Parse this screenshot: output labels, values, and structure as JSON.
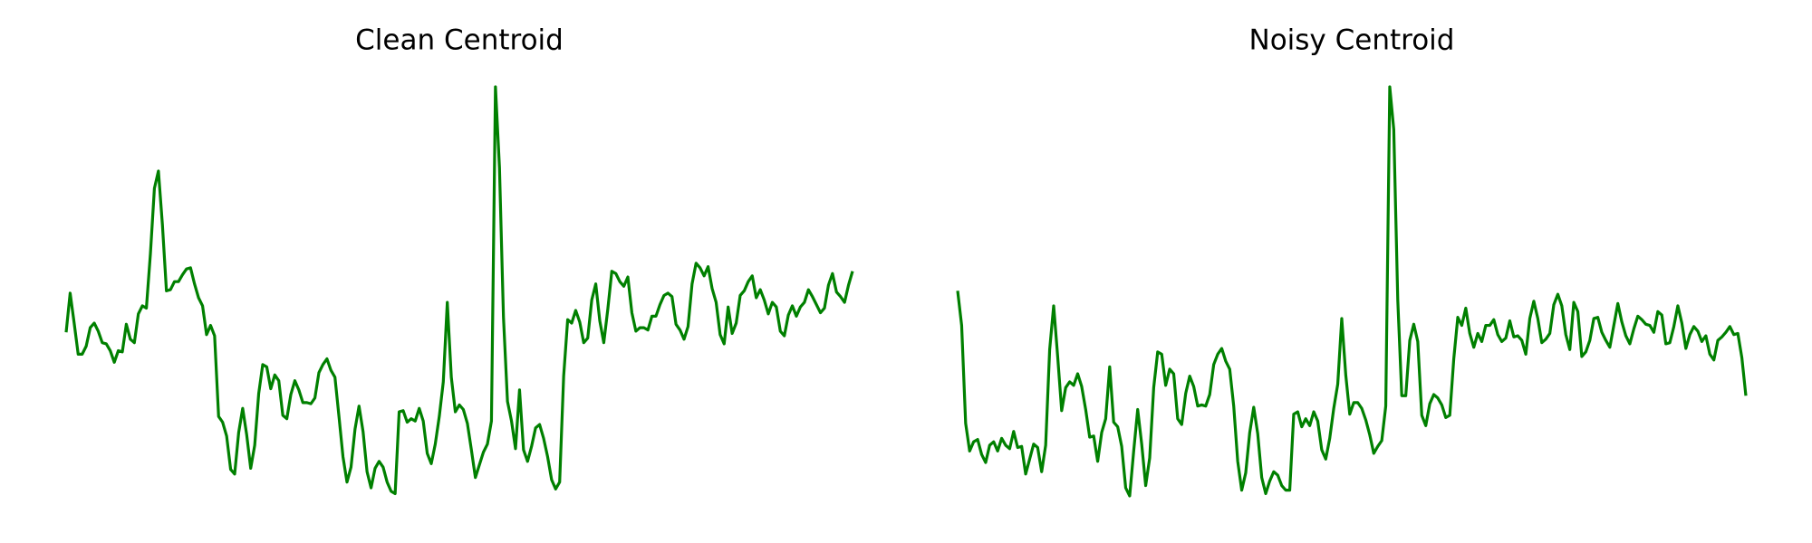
{
  "chart_data": [
    {
      "type": "line",
      "title": "Clean Centroid",
      "color": "#008000",
      "ylim": [
        0,
        355
      ],
      "values": [
        142,
        176,
        150,
        123,
        123,
        130,
        146,
        150,
        143,
        133,
        132,
        126,
        116,
        126,
        125,
        149,
        136,
        133,
        158,
        165,
        163,
        210,
        267,
        282,
        235,
        178,
        179,
        186,
        186,
        192,
        197,
        198,
        184,
        172,
        165,
        140,
        148,
        139,
        69,
        64,
        52,
        23,
        19,
        55,
        76,
        53,
        24,
        44,
        89,
        114,
        112,
        93,
        105,
        100,
        70,
        67,
        88,
        100,
        92,
        81,
        81,
        80,
        85,
        107,
        114,
        119,
        109,
        103,
        69,
        34,
        12,
        25,
        58,
        78,
        56,
        21,
        7,
        24,
        30,
        25,
        12,
        4,
        2,
        73,
        74,
        64,
        67,
        65,
        76,
        65,
        37,
        28,
        45,
        69,
        99,
        168,
        103,
        73,
        79,
        75,
        63,
        40,
        16,
        27,
        38,
        45,
        65,
        355,
        285,
        155,
        82,
        65,
        41,
        92,
        40,
        30,
        43,
        59,
        62,
        50,
        34,
        14,
        6,
        12,
        104,
        153,
        150,
        161,
        151,
        133,
        137,
        170,
        184,
        152,
        133,
        162,
        195,
        193,
        186,
        182,
        190,
        159,
        143,
        146,
        146,
        144,
        156,
        156,
        166,
        174,
        176,
        173,
        149,
        144,
        136,
        147,
        184,
        202,
        198,
        191,
        199,
        180,
        168,
        140,
        132,
        164,
        141,
        150,
        174,
        178,
        186,
        191,
        172,
        179,
        170,
        158,
        168,
        164,
        143,
        139,
        157,
        165,
        156,
        164,
        168,
        179,
        173,
        166,
        159,
        163,
        183,
        193,
        177,
        173,
        168,
        183,
        195
      ]
    },
    {
      "type": "line",
      "title": "Noisy Centroid",
      "color": "#008000",
      "ylim": [
        0,
        355
      ],
      "values": [
        178,
        148,
        63,
        39,
        47,
        49,
        36,
        29,
        44,
        47,
        39,
        50,
        44,
        41,
        56,
        42,
        43,
        19,
        32,
        45,
        42,
        21,
        44,
        127,
        165,
        121,
        74,
        94,
        99,
        96,
        106,
        95,
        75,
        51,
        52,
        30,
        55,
        67,
        112,
        64,
        60,
        43,
        7,
        0,
        39,
        75,
        45,
        9,
        33,
        94,
        125,
        123,
        96,
        110,
        106,
        67,
        62,
        89,
        104,
        95,
        78,
        79,
        78,
        88,
        114,
        123,
        128,
        117,
        110,
        78,
        30,
        5,
        20,
        55,
        77,
        54,
        16,
        2,
        13,
        21,
        18,
        9,
        5,
        5,
        71,
        73,
        60,
        67,
        61,
        73,
        65,
        40,
        32,
        50,
        76,
        97,
        154,
        105,
        71,
        81,
        81,
        76,
        66,
        53,
        37,
        43,
        48,
        78,
        355,
        318,
        170,
        87,
        87,
        135,
        149,
        134,
        70,
        61,
        80,
        88,
        85,
        79,
        68,
        70,
        119,
        155,
        148,
        163,
        141,
        129,
        141,
        134,
        148,
        148,
        153,
        140,
        134,
        137,
        152,
        138,
        139,
        135,
        123,
        154,
        169,
        154,
        133,
        136,
        141,
        166,
        175,
        165,
        140,
        127,
        168,
        160,
        121,
        125,
        135,
        154,
        155,
        142,
        135,
        129,
        148,
        167,
        151,
        139,
        132,
        145,
        156,
        153,
        149,
        148,
        142,
        160,
        157,
        132,
        133,
        147,
        165,
        150,
        128,
        140,
        147,
        143,
        134,
        139,
        123,
        118,
        135,
        138,
        142,
        147,
        140,
        141,
        120,
        87
      ]
    }
  ]
}
